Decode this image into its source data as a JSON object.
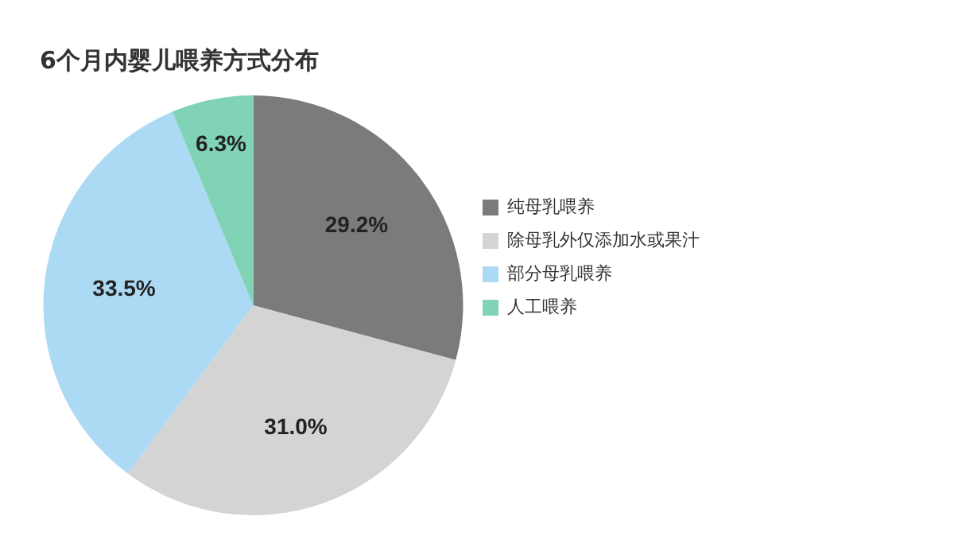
{
  "chart_data": {
    "type": "pie",
    "title": "6个月内婴儿喂养方式分布",
    "categories": [
      "纯母乳喂养",
      "除母乳外仅添加水或果汁",
      "部分母乳喂养",
      "人工喂养"
    ],
    "values": [
      29.2,
      31.0,
      33.5,
      6.3
    ],
    "colors": [
      "#7b7b7b",
      "#d4d4d4",
      "#acd9f3",
      "#80d3b5"
    ],
    "value_labels": [
      "29.2%",
      "31.0%",
      "33.5%",
      "6.3%"
    ],
    "legend": "right"
  }
}
